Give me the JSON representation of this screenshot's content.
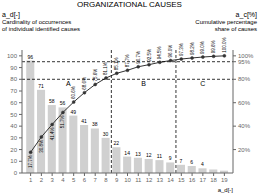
{
  "chart_data": {
    "type": "bar",
    "title": "ORGANIZATIONAL CAUSES",
    "x_label": "a_d[-]",
    "y_label": "a_d[-]",
    "y2_label": "a_c[%]",
    "annotations": [
      {
        "text": "Cardinality of occurrences\nof individual identified causes",
        "axis": "y"
      },
      {
        "text": "Cumulative percentage\nshare of causes",
        "axis": "y2"
      },
      {
        "text": "A",
        "x": 4.5,
        "y": 79
      },
      {
        "text": "B",
        "x": 11.5,
        "y": 79
      },
      {
        "text": "C",
        "x": 17.0,
        "y": 79
      }
    ],
    "x": [
      1,
      2,
      3,
      4,
      5,
      6,
      7,
      8,
      9,
      10,
      11,
      12,
      13,
      14,
      15,
      16,
      17,
      18,
      19
    ],
    "xlim": [
      0.2,
      19.8
    ],
    "xticks": [
      1,
      2,
      3,
      4,
      5,
      6,
      7,
      8,
      9,
      10,
      11,
      12,
      13,
      14,
      15,
      16,
      17,
      18,
      19
    ],
    "series": [
      {
        "type": "bar",
        "color": "#d0d0d0",
        "values": [
          96,
          71,
          58,
          56,
          49,
          41,
          38,
          30,
          22,
          14,
          13,
          12,
          11,
          9,
          7,
          6,
          4,
          3,
          2
        ],
        "data_labels": true,
        "value_labels": [
          "96",
          "71",
          "58",
          "56",
          "49",
          "41",
          "38",
          "30",
          "22",
          "14",
          "13",
          "12",
          "11",
          "9",
          "7",
          "6",
          "4",
          null,
          null
        ]
      },
      {
        "type": "line",
        "color": "#333333",
        "marker": "circle",
        "values": [
          17.7,
          30.8,
          41.4,
          51.7,
          60.6,
          68.6,
          75.6,
          81.1,
          85.1,
          87.7,
          90.7,
          92.5,
          94.5,
          96.0,
          97.3,
          98.2,
          99.0,
          99.6,
          100.0
        ],
        "data_labels": true,
        "value_labels": [
          "17.7%",
          "30.8%",
          "41.4%",
          "51.7%",
          "60.6%",
          "68.6%",
          "75.6%",
          "81.1%",
          "85.1%",
          "87.7%",
          "90.7%",
          "92.5%",
          "94.5%",
          "96.0%",
          "97.3%",
          "98.2%",
          "99.0%",
          "99.6%",
          "100.0%"
        ]
      }
    ],
    "ylim": [
      0,
      105
    ],
    "yticks": [
      0,
      10,
      20,
      30,
      40,
      50,
      60,
      70,
      80,
      90,
      100
    ],
    "y2lim": [
      0,
      105
    ],
    "y2ticks": [
      {
        "value": 20,
        "label": "20%"
      },
      {
        "value": 40,
        "label": "40%"
      },
      {
        "value": 60,
        "label": "60%"
      },
      {
        "value": 80,
        "label": "80%"
      },
      {
        "value": 95,
        "label": "95%"
      },
      {
        "value": 100,
        "label": "100%"
      }
    ],
    "reference_lines": {
      "y": [
        80,
        95
      ],
      "x": [
        8.5,
        14.5
      ]
    },
    "grid": false
  }
}
